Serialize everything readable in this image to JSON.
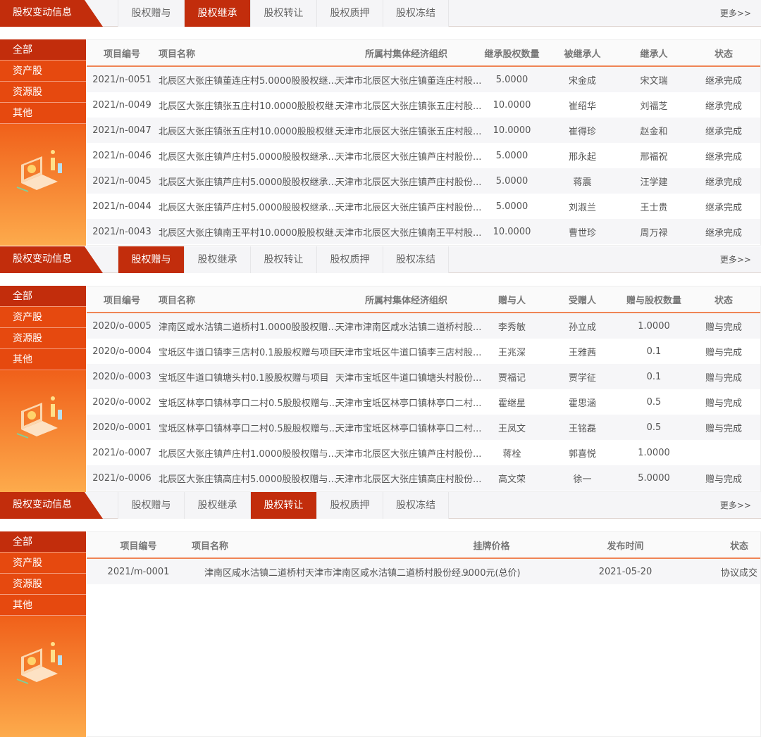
{
  "sections": [
    {
      "title": "股权变动信息",
      "tabs": [
        "股权赠与",
        "股权继承",
        "股权转让",
        "股权质押",
        "股权冻结"
      ],
      "active_tab": 1,
      "more": "更多>>",
      "side": [
        "全部",
        "资产股",
        "资源股",
        "其他"
      ],
      "columns": [
        "项目编号",
        "项目名称",
        "所属村集体经济组织",
        "继承股权数量",
        "被继承人",
        "继承人",
        "状态"
      ],
      "rows": [
        [
          "2021/n-0051",
          "北辰区大张庄镇董连庄村5.0000股股权继...",
          "天津市北辰区大张庄镇董连庄村股...",
          "5.0000",
          "宋金成",
          "宋文瑞",
          "继承完成"
        ],
        [
          "2021/n-0049",
          "北辰区大张庄镇张五庄村10.0000股股权继...",
          "天津市北辰区大张庄镇张五庄村股...",
          "10.0000",
          "崔绍华",
          "刘福芝",
          "继承完成"
        ],
        [
          "2021/n-0047",
          "北辰区大张庄镇张五庄村10.0000股股权继...",
          "天津市北辰区大张庄镇张五庄村股...",
          "10.0000",
          "崔得珍",
          "赵金和",
          "继承完成"
        ],
        [
          "2021/n-0046",
          "北辰区大张庄镇芦庄村5.0000股股权继承...",
          "天津市北辰区大张庄镇芦庄村股份...",
          "5.0000",
          "邢永起",
          "邢福祝",
          "继承完成"
        ],
        [
          "2021/n-0045",
          "北辰区大张庄镇芦庄村5.0000股股权继承...",
          "天津市北辰区大张庄镇芦庄村股份...",
          "5.0000",
          "蒋震",
          "汪学建",
          "继承完成"
        ],
        [
          "2021/n-0044",
          "北辰区大张庄镇芦庄村5.0000股股权继承...",
          "天津市北辰区大张庄镇芦庄村股份...",
          "5.0000",
          "刘淑兰",
          "王士贵",
          "继承完成"
        ],
        [
          "2021/n-0043",
          "北辰区大张庄镇南王平村10.0000股股权继...",
          "天津市北辰区大张庄镇南王平村股...",
          "10.0000",
          "曹世珍",
          "周万禄",
          "继承完成"
        ]
      ]
    },
    {
      "title": "股权变动信息",
      "tabs": [
        "股权赠与",
        "股权继承",
        "股权转让",
        "股权质押",
        "股权冻结"
      ],
      "active_tab": 0,
      "more": "更多>>",
      "side": [
        "全部",
        "资产股",
        "资源股",
        "其他"
      ],
      "columns": [
        "项目编号",
        "项目名称",
        "所属村集体经济组织",
        "赠与人",
        "受赠人",
        "赠与股权数量",
        "状态"
      ],
      "rows": [
        [
          "2020/o-0005",
          "津南区咸水沽镇二道桥村1.0000股股权赠...",
          "天津市津南区咸水沽镇二道桥村股...",
          "李秀敏",
          "孙立成",
          "1.0000",
          "赠与完成"
        ],
        [
          "2020/o-0004",
          "宝坻区牛道口镇李三店村0.1股股权赠与项目",
          "天津市宝坻区牛道口镇李三店村股...",
          "王兆深",
          "王雅茜",
          "0.1",
          "赠与完成"
        ],
        [
          "2020/o-0003",
          "宝坻区牛道口镇塘头村0.1股股权赠与项目",
          "天津市宝坻区牛道口镇塘头村股份...",
          "贾福记",
          "贾学征",
          "0.1",
          "赠与完成"
        ],
        [
          "2020/o-0002",
          "宝坻区林亭口镇林亭口二村0.5股股权赠与...",
          "天津市宝坻区林亭口镇林亭口二村...",
          "霍继星",
          "霍思涵",
          "0.5",
          "赠与完成"
        ],
        [
          "2020/o-0001",
          "宝坻区林亭口镇林亭口二村0.5股股权赠与...",
          "天津市宝坻区林亭口镇林亭口二村...",
          "王凤文",
          "王铭磊",
          "0.5",
          "赠与完成"
        ],
        [
          "2021/o-0007",
          "北辰区大张庄镇芦庄村1.0000股股权赠与...",
          "天津市北辰区大张庄镇芦庄村股份...",
          "蒋栓",
          "郭喜悦",
          "1.0000",
          ""
        ],
        [
          "2021/o-0006",
          "北辰区大张庄镇高庄村5.0000股股权赠与...",
          "天津市北辰区大张庄镇高庄村股份...",
          "高文荣",
          "徐一",
          "5.0000",
          "赠与完成"
        ]
      ]
    },
    {
      "title": "股权变动信息",
      "tabs": [
        "股权赠与",
        "股权继承",
        "股权转让",
        "股权质押",
        "股权冻结"
      ],
      "active_tab": 2,
      "more": "更多>>",
      "side": [
        "全部",
        "资产股",
        "资源股",
        "其他"
      ],
      "columns": [
        "项目编号",
        "项目名称",
        "挂牌价格",
        "发布时间",
        "状态"
      ],
      "rows": [
        [
          "2021/m-0001",
          "津南区咸水沽镇二道桥村天津市津南区咸水沽镇二道桥村股份经...",
          "9000元(总价)",
          "2021-05-20",
          "协议成交"
        ]
      ]
    }
  ],
  "colors": {
    "brand": "#c22d0c",
    "accent": "#e6490f"
  }
}
